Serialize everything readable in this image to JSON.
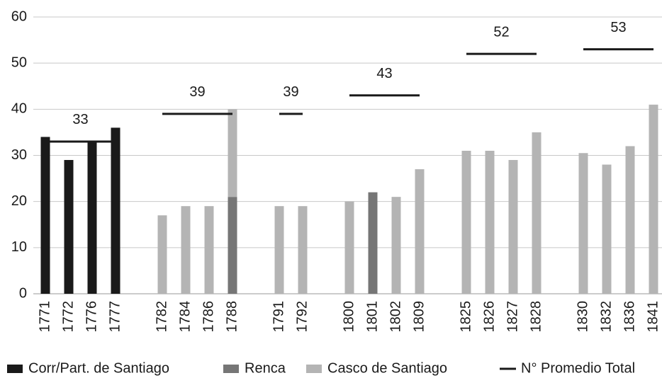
{
  "chart_data": {
    "type": "bar",
    "stacked": true,
    "categories": [
      "1771",
      "1772",
      "1776",
      "1777",
      null,
      "1782",
      "1784",
      "1786",
      "1788",
      null,
      "1791",
      "1792",
      null,
      "1800",
      "1801",
      "1802",
      "1809",
      null,
      "1825",
      "1826",
      "1827",
      "1828",
      null,
      "1830",
      "1832",
      "1836",
      "1841"
    ],
    "series": [
      {
        "name": "Corr/Part. de Santiago",
        "color": "#1a1a1a",
        "values": [
          34,
          29,
          33,
          36,
          null,
          null,
          null,
          null,
          null,
          null,
          null,
          null,
          null,
          null,
          null,
          null,
          null,
          null,
          null,
          null,
          null,
          null,
          null,
          null,
          null,
          null,
          null
        ]
      },
      {
        "name": "Renca",
        "color": "#767676",
        "values": [
          null,
          null,
          null,
          null,
          null,
          null,
          null,
          null,
          21,
          null,
          null,
          null,
          null,
          null,
          22,
          null,
          null,
          null,
          null,
          null,
          null,
          null,
          null,
          null,
          null,
          null,
          null
        ]
      },
      {
        "name": "Casco de Santiago",
        "color": "#b4b4b4",
        "values": [
          null,
          null,
          null,
          null,
          null,
          17,
          19,
          19,
          19,
          null,
          19,
          19,
          null,
          20,
          null,
          21,
          27,
          null,
          31,
          31,
          29,
          35,
          null,
          30.5,
          28,
          32,
          41
        ]
      },
      {
        "name": "N° Promedio Total",
        "color": "#1a1a1a",
        "type": "line",
        "values": [
          33,
          33,
          33,
          33,
          null,
          39,
          39,
          39,
          39,
          null,
          39,
          39,
          null,
          43,
          43,
          43,
          43,
          null,
          52,
          52,
          52,
          52,
          null,
          53,
          53,
          53,
          53
        ]
      }
    ],
    "ylim": [
      0,
      60
    ],
    "yticks": [
      0,
      10,
      20,
      30,
      40,
      50,
      60
    ],
    "grid": true,
    "legend": "bottom"
  }
}
